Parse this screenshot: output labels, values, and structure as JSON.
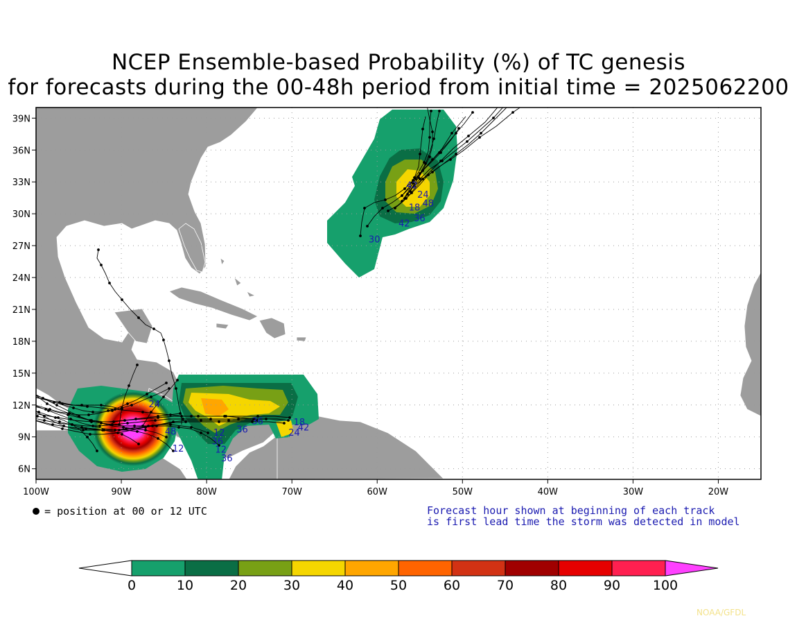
{
  "title_line1": "NCEP Ensemble-based Probability (%) of TC genesis",
  "title_line2": "for forecasts during the 00-48h period from initial time = 2025062200",
  "map": {
    "lon_range": [
      -100,
      -15
    ],
    "lat_range": [
      5,
      40
    ],
    "lon_ticks": [
      "100W",
      "90W",
      "80W",
      "70W",
      "60W",
      "50W",
      "40W",
      "30W",
      "20W"
    ],
    "lat_ticks": [
      "6N",
      "9N",
      "12N",
      "15N",
      "18N",
      "21N",
      "24N",
      "27N",
      "30N",
      "33N",
      "36N",
      "39N"
    ],
    "land_color": "#9d9d9d",
    "grid": "dotted"
  },
  "legend": {
    "position_note": "= position at 00 or 12 UTC",
    "forecast_note_line1": "Forecast hour shown at beginning of each track",
    "forecast_note_line2": "is first lead time the storm was detected in model"
  },
  "colorbar": {
    "labels": [
      "0",
      "10",
      "20",
      "30",
      "40",
      "50",
      "60",
      "70",
      "80",
      "90",
      "100"
    ],
    "colors": [
      "#16a06c",
      "#0a6e45",
      "#78a015",
      "#f5d600",
      "#ffa600",
      "#ff6400",
      "#d23214",
      "#a00000",
      "#e60000",
      "#ff2050",
      "#ff40ff"
    ]
  },
  "track_labels": [
    {
      "text": "42",
      "lon": -56.6,
      "lat": 32.4
    },
    {
      "text": "24",
      "lon": -55.3,
      "lat": 31.5
    },
    {
      "text": "18",
      "lon": -56.3,
      "lat": 30.3
    },
    {
      "text": "48",
      "lon": -54.7,
      "lat": 30.7
    },
    {
      "text": "36",
      "lon": -55.7,
      "lat": 29.3
    },
    {
      "text": "42",
      "lon": -57.5,
      "lat": 28.8
    },
    {
      "text": "30",
      "lon": -61.0,
      "lat": 27.3
    },
    {
      "text": "36",
      "lon": -74.7,
      "lat": 10.2
    },
    {
      "text": "36",
      "lon": -76.5,
      "lat": 9.4
    },
    {
      "text": "12",
      "lon": -79.2,
      "lat": 9.1
    },
    {
      "text": "36",
      "lon": -79.4,
      "lat": 8.3
    },
    {
      "text": "12",
      "lon": -79.0,
      "lat": 7.5
    },
    {
      "text": "36",
      "lon": -78.3,
      "lat": 6.7
    },
    {
      "text": "48",
      "lon": -84.9,
      "lat": 9.2
    },
    {
      "text": "12",
      "lon": -84.0,
      "lat": 7.6
    },
    {
      "text": "24",
      "lon": -86.8,
      "lat": 11.8
    },
    {
      "text": "18",
      "lon": -69.8,
      "lat": 10.1
    },
    {
      "text": "42",
      "lon": -69.3,
      "lat": 9.6
    },
    {
      "text": "24",
      "lon": -70.4,
      "lat": 9.1
    }
  ],
  "credit": "NOAA/GFDL"
}
